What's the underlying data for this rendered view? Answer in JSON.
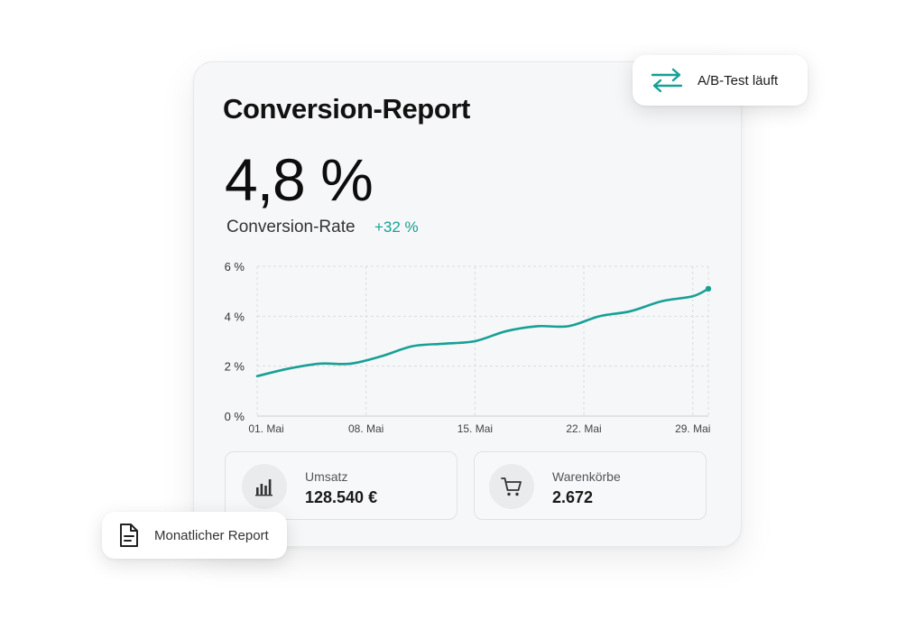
{
  "report": {
    "title": "Conversion-Report",
    "metric_value": "4,8 %",
    "metric_label": "Conversion-Rate",
    "metric_delta": "+32 %"
  },
  "colors": {
    "accent": "#17a096",
    "grid": "#d9dcdf",
    "text": "#111111"
  },
  "chart_data": {
    "type": "line",
    "y_ticks": [
      "0 %",
      "2 %",
      "4 %",
      "6 %"
    ],
    "x_ticks": [
      "01. Mai",
      "08. Mai",
      "15. Mai",
      "22. Mai",
      "29. Mai"
    ],
    "ylim": [
      0,
      6
    ],
    "grid": true,
    "series": [
      {
        "values": [
          {
            "x": 1,
            "y": 1.6
          },
          {
            "x": 3,
            "y": 1.9
          },
          {
            "x": 5,
            "y": 2.1
          },
          {
            "x": 7,
            "y": 2.1
          },
          {
            "x": 9,
            "y": 2.4
          },
          {
            "x": 11,
            "y": 2.8
          },
          {
            "x": 13,
            "y": 2.9
          },
          {
            "x": 15,
            "y": 3.0
          },
          {
            "x": 17,
            "y": 3.4
          },
          {
            "x": 19,
            "y": 3.6
          },
          {
            "x": 21,
            "y": 3.6
          },
          {
            "x": 23,
            "y": 4.0
          },
          {
            "x": 25,
            "y": 4.2
          },
          {
            "x": 27,
            "y": 4.6
          },
          {
            "x": 29,
            "y": 4.8
          },
          {
            "x": 30,
            "y": 5.1
          }
        ]
      }
    ]
  },
  "stats": [
    {
      "label": "Umsatz",
      "value": "128.540 €",
      "icon": "bar-chart-icon"
    },
    {
      "label": "Warenkörbe",
      "value": "2.672",
      "icon": "cart-icon"
    }
  ],
  "badges": {
    "ab_test": {
      "label": "A/B-Test läuft",
      "icon": "swap-arrows-icon"
    },
    "monthly_report": {
      "label": "Monatlicher Report",
      "icon": "document-icon"
    }
  }
}
